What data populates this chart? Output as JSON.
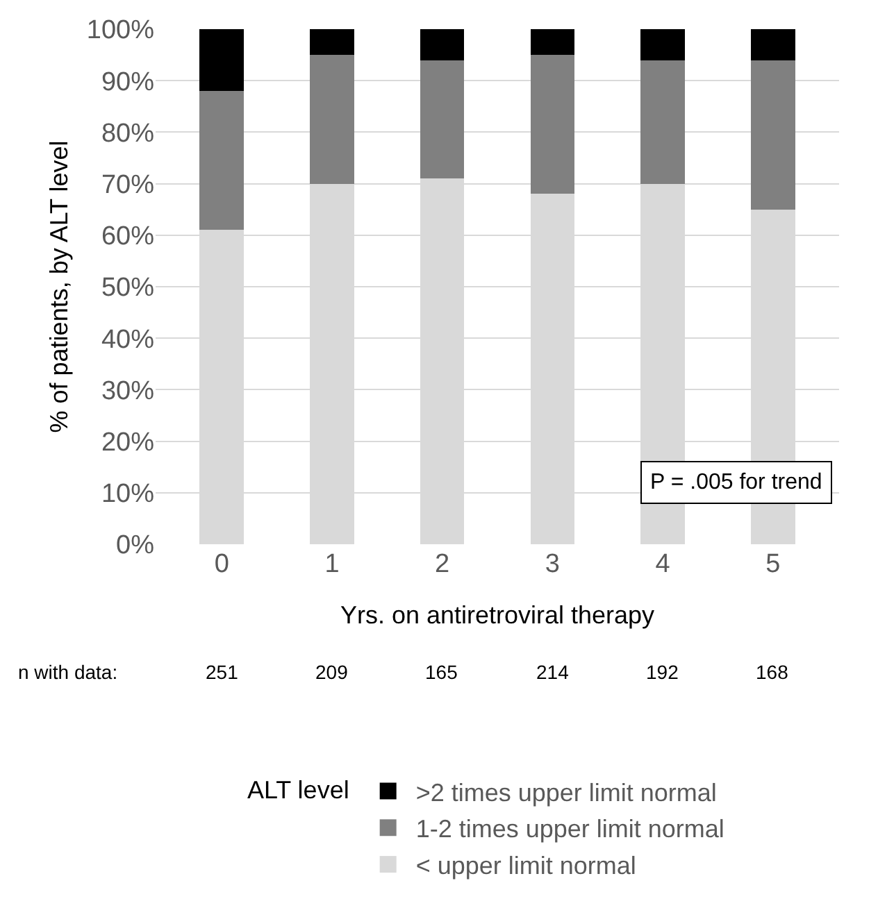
{
  "chart_data": {
    "type": "bar",
    "stacked": true,
    "categories": [
      "0",
      "1",
      "2",
      "3",
      "4",
      "5"
    ],
    "series": [
      {
        "name": "< upper limit normal",
        "color": "#d9d9d9",
        "values": [
          61,
          70,
          71,
          68,
          70,
          65
        ]
      },
      {
        "name": "1-2 times upper limit normal",
        "color": "#808080",
        "values": [
          27,
          25,
          23,
          27,
          24,
          29
        ]
      },
      {
        "name": ">2 times upper limit normal",
        "color": "#000000",
        "values": [
          12,
          5,
          6,
          5,
          6,
          6
        ]
      }
    ],
    "xlabel": "Yrs. on antiretroviral therapy",
    "ylabel": "% of patients, by ALT level",
    "ylim": [
      0,
      100
    ],
    "yticks": [
      {
        "value": 0,
        "label": "0%"
      },
      {
        "value": 10,
        "label": "10%"
      },
      {
        "value": 20,
        "label": "20%"
      },
      {
        "value": 30,
        "label": "30%"
      },
      {
        "value": 40,
        "label": "40%"
      },
      {
        "value": 50,
        "label": "50%"
      },
      {
        "value": 60,
        "label": "60%"
      },
      {
        "value": 70,
        "label": "70%"
      },
      {
        "value": 80,
        "label": "80%"
      },
      {
        "value": 90,
        "label": "90%"
      },
      {
        "value": 100,
        "label": "100%"
      }
    ],
    "grid": "y",
    "legend": "bottom",
    "legend_title": "ALT level",
    "annotations": [
      "P = .005 for trend",
      "n with data:",
      "251",
      "209",
      "165",
      "214",
      "192",
      "168"
    ]
  }
}
